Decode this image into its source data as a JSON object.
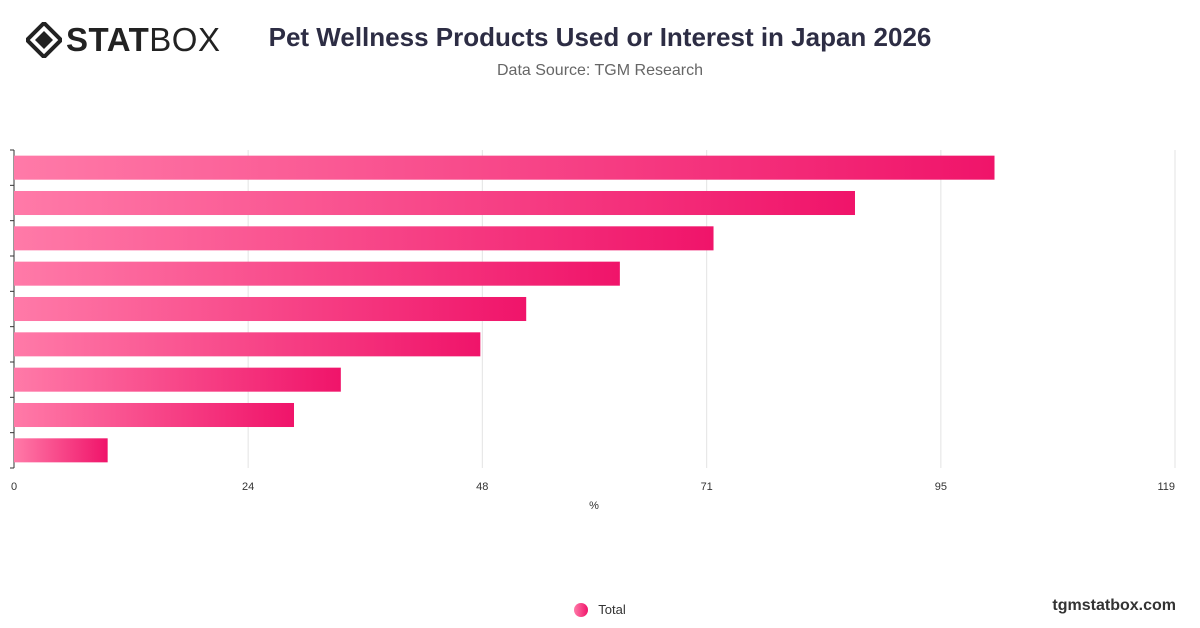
{
  "header": {
    "logo_bold": "STAT",
    "logo_light": "BOX",
    "title": "Pet Wellness Products Used or Interest in Japan 2026",
    "subtitle": "Data Source: TGM Research"
  },
  "footer": {
    "site": "tgmstatbox.com"
  },
  "colors": {
    "bar_start": "#ff7aa8",
    "bar_end": "#f0146a",
    "grid": "#e3e3e3",
    "axis": "#333333"
  },
  "chart_data": {
    "type": "bar",
    "orientation": "horizontal",
    "categories": [
      "",
      "",
      "",
      "",
      "",
      "",
      "",
      "",
      ""
    ],
    "series": [
      {
        "name": "Total",
        "values": [
          100.5,
          86.2,
          71.7,
          62.1,
          52.5,
          47.8,
          33.5,
          28.7,
          9.6
        ]
      }
    ],
    "xlabel": "%",
    "xlim": [
      0,
      119
    ],
    "xticks": [
      "0",
      "24",
      "48",
      "71",
      "95",
      "119"
    ],
    "xtick_values": [
      0,
      24,
      48,
      71,
      95,
      119
    ],
    "grid": true,
    "legend_position": "bottom-center"
  }
}
